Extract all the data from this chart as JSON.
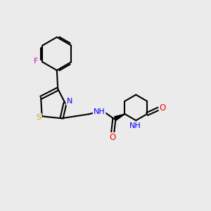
{
  "background_color": "#ebebeb",
  "bond_color": "#000000",
  "atom_colors": {
    "N": "#0000ff",
    "O": "#ff0000",
    "S": "#ccaa00",
    "F": "#cc00cc",
    "C": "#000000",
    "H": "#000000"
  },
  "figsize": [
    3.0,
    3.0
  ],
  "dpi": 100
}
